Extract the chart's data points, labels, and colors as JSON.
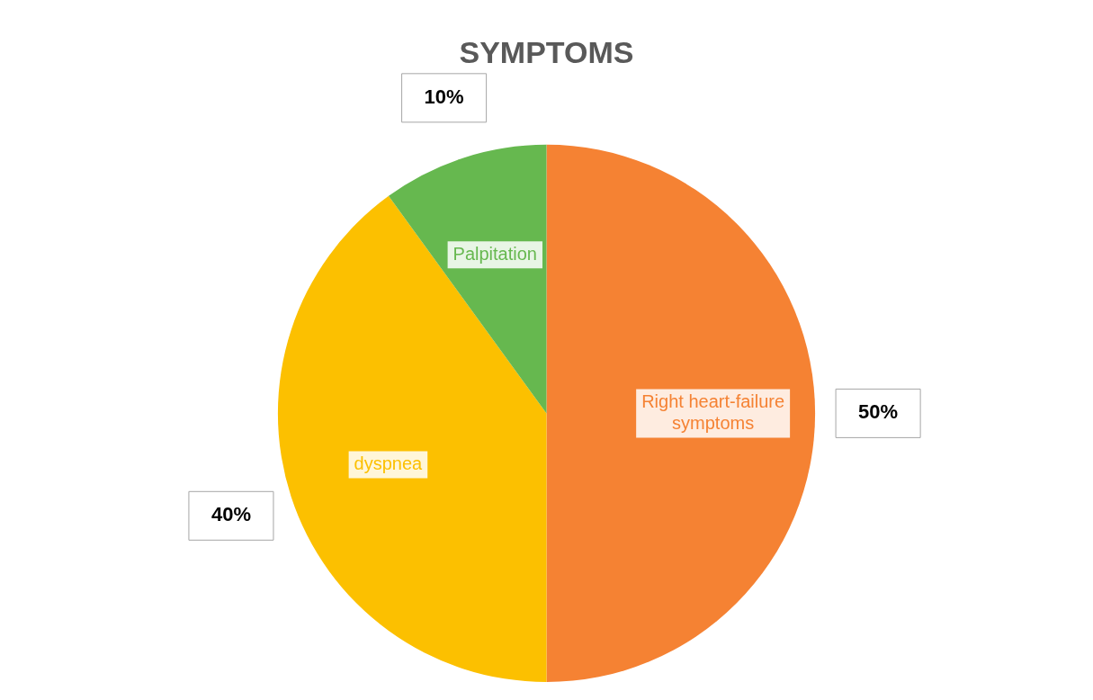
{
  "chart_data": {
    "type": "pie",
    "title": "SYMPTOMS",
    "categories": [
      "Right heart-failure symptoms",
      "dyspnea",
      "Palpitation"
    ],
    "values": [
      50,
      40,
      10
    ],
    "colors": [
      "#f58233",
      "#fcc000",
      "#66b84f"
    ],
    "value_labels": [
      "50%",
      "40%",
      "10%"
    ],
    "legend": false
  }
}
